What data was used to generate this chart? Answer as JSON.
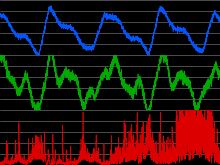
{
  "bg_color": "#000000",
  "panel_bg": "#000000",
  "grid_color": "#888888",
  "blue_color": "#0055ff",
  "green_color": "#00aa00",
  "red_color": "#dd0000",
  "x_min": 0,
  "x_max": 400000,
  "seed": 7
}
